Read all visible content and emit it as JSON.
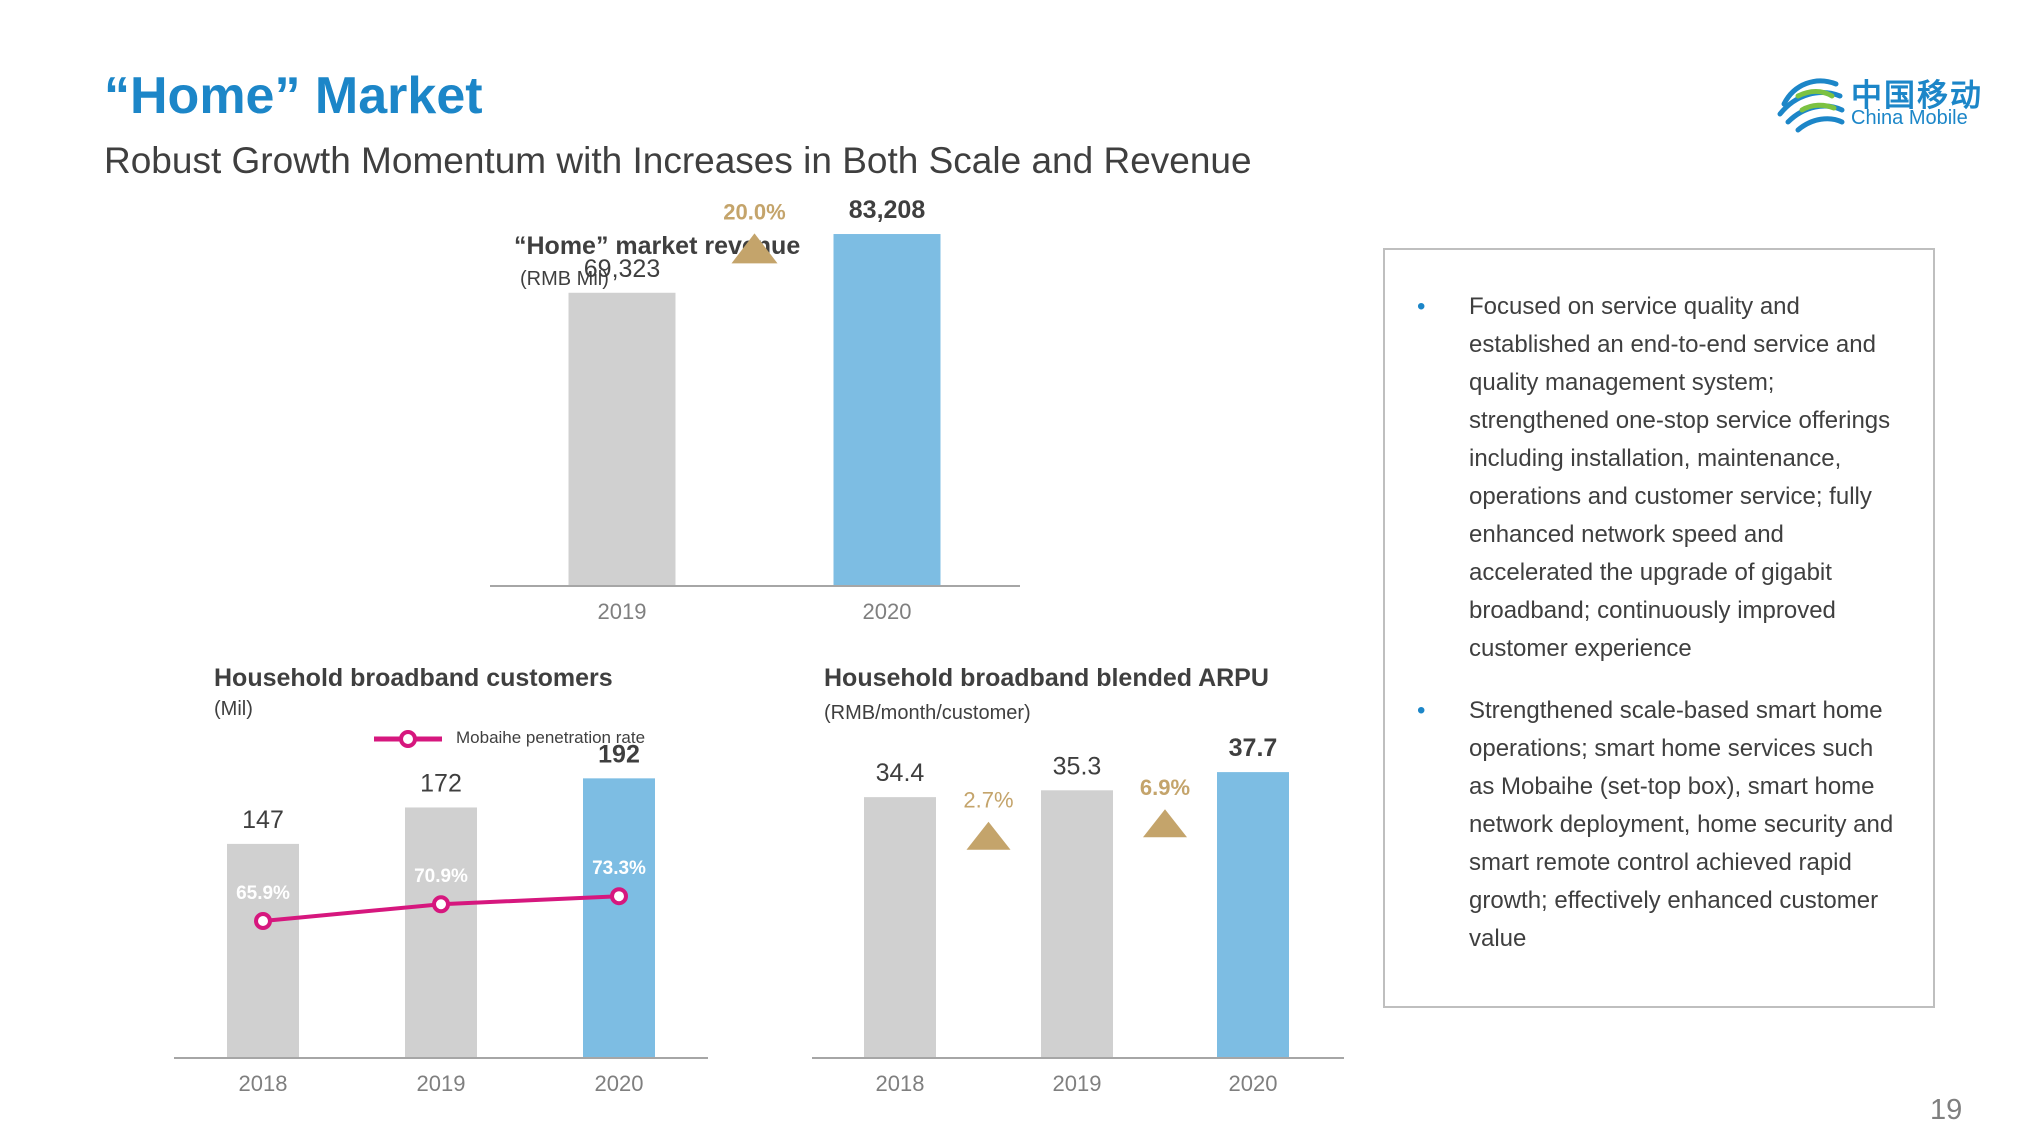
{
  "header": {
    "title": "“Home” Market",
    "subtitle": "Robust Growth Momentum with Increases in Both Scale and Revenue"
  },
  "logo": {
    "icon": "china-mobile-logo-icon",
    "cn": "中国移动",
    "en": "China Mobile"
  },
  "page_number": "19",
  "colors": {
    "accent": "#1c86c8",
    "bar_gray": "#d0d0d0",
    "bar_blue": "#7dbde3",
    "growth_gold": "#c4a46b",
    "line_magenta": "#d6177e",
    "axis": "#a6a6a6"
  },
  "chart_data": [
    {
      "id": "revenue",
      "type": "bar",
      "title": "“Home” market revenue",
      "unit": "(RMB Mil)",
      "categories": [
        "2019",
        "2020"
      ],
      "values": [
        69323,
        83208
      ],
      "value_labels": [
        "69,323",
        "83,208"
      ],
      "ylim": [
        0,
        100000
      ],
      "growth": [
        {
          "between": [
            0,
            1
          ],
          "label": "20.0%"
        }
      ]
    },
    {
      "id": "customers",
      "type": "bar",
      "title": "Household broadband customers",
      "unit": "(Mil)",
      "categories": [
        "2018",
        "2019",
        "2020"
      ],
      "values": [
        147,
        172,
        192
      ],
      "value_labels": [
        "147",
        "172",
        "192"
      ],
      "ylim": [
        0,
        230
      ],
      "line_series": {
        "name": "Mobaihe penetration rate",
        "values": [
          65.9,
          70.9,
          73.3
        ],
        "labels": [
          "65.9%",
          "70.9%",
          "73.3%"
        ],
        "ylim": [
          25,
          125
        ]
      },
      "legend_position": "top"
    },
    {
      "id": "arpu",
      "type": "bar",
      "title": "Household broadband blended ARPU",
      "unit": "(RMB/month/customer)",
      "categories": [
        "2018",
        "2019",
        "2020"
      ],
      "values": [
        34.4,
        35.3,
        37.7
      ],
      "value_labels": [
        "34.4",
        "35.3",
        "37.7"
      ],
      "ylim": [
        0,
        48
      ],
      "growth": [
        {
          "between": [
            0,
            1
          ],
          "label": "2.7%"
        },
        {
          "between": [
            1,
            2
          ],
          "label": "6.9%"
        }
      ]
    }
  ],
  "bullets": [
    "Focused on service quality and established an end-to-end service and quality management system; strengthened one-stop service offerings including installation, maintenance, operations and customer service; fully enhanced network speed and accelerated the upgrade of gigabit broadband; continuously improved customer experience",
    "Strengthened scale-based smart home operations;  smart home services such as Mobaihe (set-top box), smart home network deployment, home security and smart remote control achieved rapid growth; effectively enhanced customer value"
  ]
}
